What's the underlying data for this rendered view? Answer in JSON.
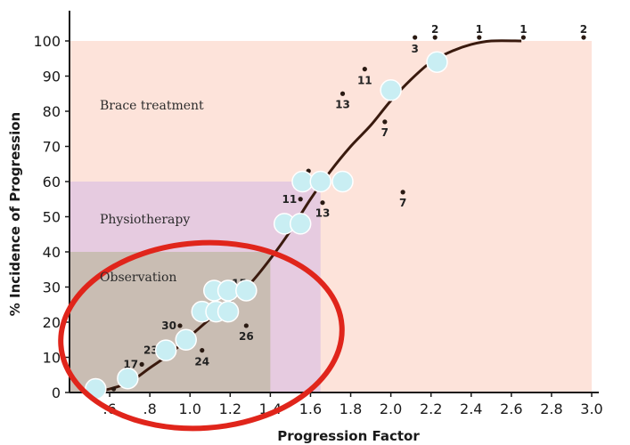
{
  "chart_data": {
    "type": "scatter",
    "title": "",
    "xlabel": "Progression Factor",
    "ylabel": "% Incidence of Progression",
    "xlim": [
      0.4,
      3.05
    ],
    "ylim": [
      0,
      107
    ],
    "x_ticks": [
      {
        "value": 0.6,
        "label": ".6"
      },
      {
        "value": 0.8,
        "label": ".8"
      },
      {
        "value": 1.0,
        "label": "1.0"
      },
      {
        "value": 1.2,
        "label": "1.2"
      },
      {
        "value": 1.4,
        "label": "1.4"
      },
      {
        "value": 1.6,
        "label": "1.6"
      },
      {
        "value": 1.8,
        "label": "1.8"
      },
      {
        "value": 2.0,
        "label": "2.0"
      },
      {
        "value": 2.2,
        "label": "2.2"
      },
      {
        "value": 2.4,
        "label": "2.4"
      },
      {
        "value": 2.6,
        "label": "2.6"
      },
      {
        "value": 2.8,
        "label": "2.8"
      },
      {
        "value": 3.0,
        "label": "3.0"
      }
    ],
    "y_ticks": [
      {
        "value": 0,
        "label": "0"
      },
      {
        "value": 10,
        "label": "10"
      },
      {
        "value": 20,
        "label": "20"
      },
      {
        "value": 30,
        "label": "30"
      },
      {
        "value": 40,
        "label": "40"
      },
      {
        "value": 50,
        "label": "50"
      },
      {
        "value": 60,
        "label": "60"
      },
      {
        "value": 70,
        "label": "70"
      },
      {
        "value": 80,
        "label": "80"
      },
      {
        "value": 90,
        "label": "90"
      },
      {
        "value": 100,
        "label": "100"
      }
    ],
    "regions": [
      {
        "label": "Brace treatment",
        "x": [
          0.4,
          3.0
        ],
        "y": [
          0,
          100
        ],
        "color": "#fde3da"
      },
      {
        "label": "Physiotherapy",
        "x": [
          0.4,
          1.65
        ],
        "y": [
          0,
          60
        ],
        "color": "#e6cbe0"
      },
      {
        "label": "Observation",
        "x": [
          0.4,
          1.4
        ],
        "y": [
          0,
          40
        ],
        "color": "#c9bdb3"
      }
    ],
    "curve": [
      [
        0.5,
        0
      ],
      [
        0.6,
        1
      ],
      [
        0.7,
        3
      ],
      [
        0.8,
        7
      ],
      [
        0.9,
        11
      ],
      [
        1.0,
        16
      ],
      [
        1.1,
        21
      ],
      [
        1.2,
        26
      ],
      [
        1.3,
        31
      ],
      [
        1.4,
        38
      ],
      [
        1.5,
        46
      ],
      [
        1.6,
        55
      ],
      [
        1.7,
        63
      ],
      [
        1.8,
        70
      ],
      [
        1.9,
        76
      ],
      [
        2.0,
        83
      ],
      [
        2.1,
        89
      ],
      [
        2.2,
        94
      ],
      [
        2.3,
        97
      ],
      [
        2.4,
        99
      ],
      [
        2.5,
        100
      ],
      [
        2.65,
        100
      ]
    ],
    "observed_points": [
      {
        "x": 0.62,
        "y": 1,
        "label": ""
      },
      {
        "x": 0.76,
        "y": 8,
        "label": "17"
      },
      {
        "x": 0.95,
        "y": 19,
        "label": "30"
      },
      {
        "x": 0.86,
        "y": 12,
        "label": "23"
      },
      {
        "x": 1.06,
        "y": 12,
        "label": "24"
      },
      {
        "x": 1.3,
        "y": 31,
        "label": "15"
      },
      {
        "x": 1.28,
        "y": 19,
        "label": "26"
      },
      {
        "x": 1.55,
        "y": 55,
        "label": "11"
      },
      {
        "x": 1.59,
        "y": 63,
        "label": ""
      },
      {
        "x": 1.66,
        "y": 54,
        "label": "13"
      },
      {
        "x": 1.76,
        "y": 85,
        "label": "13"
      },
      {
        "x": 1.97,
        "y": 77,
        "label": "7"
      },
      {
        "x": 1.87,
        "y": 92,
        "label": "11"
      },
      {
        "x": 2.06,
        "y": 57,
        "label": "7"
      },
      {
        "x": 2.12,
        "y": 101,
        "label": "3"
      },
      {
        "x": 2.22,
        "y": 101,
        "label": "2"
      },
      {
        "x": 2.44,
        "y": 101,
        "label": "1"
      },
      {
        "x": 2.66,
        "y": 101,
        "label": "1"
      },
      {
        "x": 2.96,
        "y": 101,
        "label": "2"
      }
    ],
    "highlight_points": [
      {
        "x": 0.53,
        "y": 1
      },
      {
        "x": 0.69,
        "y": 4
      },
      {
        "x": 0.88,
        "y": 12
      },
      {
        "x": 0.98,
        "y": 15
      },
      {
        "x": 1.06,
        "y": 23
      },
      {
        "x": 1.13,
        "y": 23
      },
      {
        "x": 1.19,
        "y": 23
      },
      {
        "x": 1.12,
        "y": 29
      },
      {
        "x": 1.19,
        "y": 29
      },
      {
        "x": 1.28,
        "y": 29
      },
      {
        "x": 1.47,
        "y": 48
      },
      {
        "x": 1.55,
        "y": 48
      },
      {
        "x": 1.56,
        "y": 60
      },
      {
        "x": 1.65,
        "y": 60
      },
      {
        "x": 1.76,
        "y": 60
      },
      {
        "x": 2.0,
        "y": 86
      },
      {
        "x": 2.23,
        "y": 94
      }
    ],
    "colors": {
      "curve": "#3a1a0e",
      "points": "#2a1a12",
      "highlight_fill": "#c9eef3",
      "highlight_stroke": "#ffffff",
      "circle_annotation": "#e0251b",
      "axis": "#1a1a1a"
    },
    "grid": false
  }
}
